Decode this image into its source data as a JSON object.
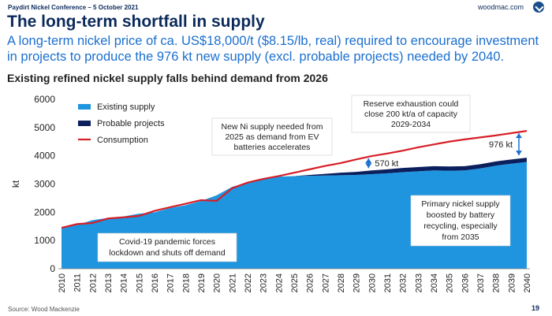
{
  "header": {
    "conference": "Paydirt Nickel Conference – 5 October 2021",
    "brand": "woodmac.com",
    "logo": "wood-mackenzie-logo"
  },
  "slide": {
    "title": "The long-term shortfall in supply",
    "subtitle": "A long-term nickel price of ca. US$18,000/t ($8.15/lb, real) required to encourage investment in projects to produce the 976 kt new supply (excl. probable projects) needed by 2040.",
    "source": "Source: Wood Mackenzie",
    "page": "19"
  },
  "chart_data": {
    "type": "area",
    "title": "Existing refined nickel supply falls behind demand from 2026",
    "ylabel": "kt",
    "xlabel": "",
    "ylim": [
      0,
      6000
    ],
    "yticks": [
      0,
      1000,
      2000,
      3000,
      4000,
      5000,
      6000
    ],
    "grid": false,
    "legend_position": "top-left",
    "x": [
      2010,
      2011,
      2012,
      2013,
      2014,
      2015,
      2016,
      2017,
      2018,
      2019,
      2020,
      2021,
      2022,
      2023,
      2024,
      2025,
      2026,
      2027,
      2028,
      2029,
      2030,
      2031,
      2032,
      2033,
      2034,
      2035,
      2036,
      2037,
      2038,
      2039,
      2040
    ],
    "series": [
      {
        "name": "Existing supply",
        "kind": "area",
        "color": "#1f95e0",
        "values": [
          1450,
          1550,
          1720,
          1800,
          1850,
          1950,
          2000,
          2150,
          2250,
          2400,
          2600,
          2900,
          3050,
          3180,
          3260,
          3280,
          3290,
          3300,
          3310,
          3320,
          3350,
          3380,
          3420,
          3450,
          3480,
          3470,
          3480,
          3550,
          3650,
          3720,
          3780
        ]
      },
      {
        "name": "Probable projects",
        "kind": "stacked-area",
        "color": "#0b1f5c",
        "values": [
          0,
          0,
          0,
          0,
          0,
          0,
          0,
          0,
          0,
          0,
          0,
          0,
          0,
          0,
          0,
          0,
          30,
          60,
          90,
          110,
          130,
          140,
          150,
          150,
          150,
          150,
          150,
          150,
          150,
          150,
          150
        ]
      },
      {
        "name": "Consumption",
        "kind": "line",
        "color": "#d61f26",
        "values": [
          1450,
          1580,
          1620,
          1780,
          1820,
          1870,
          2050,
          2180,
          2300,
          2430,
          2400,
          2850,
          3050,
          3180,
          3280,
          3400,
          3520,
          3640,
          3740,
          3870,
          3990,
          4080,
          4180,
          4300,
          4400,
          4500,
          4580,
          4650,
          4720,
          4800,
          4880
        ]
      }
    ],
    "annotations": [
      {
        "id": "covid",
        "text": [
          "Covid-19 pandemic forces",
          "lockdown and shuts off demand"
        ]
      },
      {
        "id": "new-supply",
        "text": [
          "New Ni supply needed from",
          "2025 as demand from EV",
          "batteries accelerates"
        ]
      },
      {
        "id": "reserve",
        "text": [
          "Reserve exhaustion could",
          "close 200 kt/a of capacity",
          "2029-2034"
        ]
      },
      {
        "id": "recycling",
        "text": [
          "Primary nickel supply",
          "boosted by battery",
          "recycling, especially",
          "from 2035"
        ]
      }
    ],
    "gap_labels": [
      {
        "text": "570 kt",
        "x": 2030
      },
      {
        "text": "976 kt",
        "x": 2040
      }
    ]
  }
}
